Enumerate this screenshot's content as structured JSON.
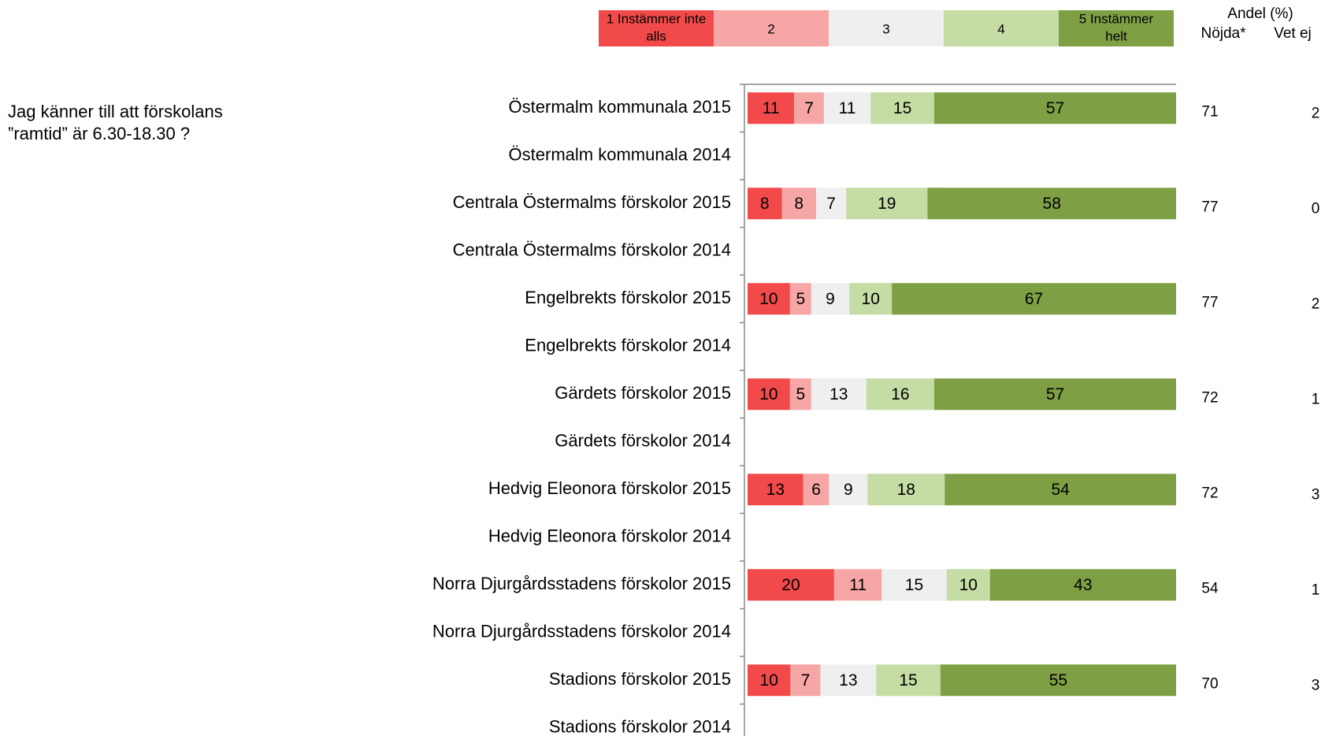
{
  "question": {
    "line1": "Jag känner till att förskolans",
    "line2": "”ramtid” är 6.30-18.30 ?"
  },
  "chart_data": {
    "type": "bar",
    "orientation": "horizontal",
    "stacked": true,
    "xlim": [
      0,
      100
    ],
    "grid": false,
    "legend_position": "top",
    "header": {
      "andel": "Andel (%)",
      "nojda": "Nöjda*",
      "vetej": "Vet ej"
    },
    "legend": [
      {
        "label": "1 Instämmer inte alls",
        "lines": [
          "1 Instämmer inte",
          "alls"
        ],
        "color": "#f24a4a"
      },
      {
        "label": "2",
        "lines": [
          "2"
        ],
        "color": "#f7a6a6"
      },
      {
        "label": "3",
        "lines": [
          "3"
        ],
        "color": "#efefef"
      },
      {
        "label": "4",
        "lines": [
          "4"
        ],
        "color": "#c6dca5"
      },
      {
        "label": "5 Instämmer helt",
        "lines": [
          "5 Instämmer",
          "helt"
        ],
        "color": "#7f9f44"
      }
    ],
    "categories": [
      {
        "label": "Östermalm kommunala 2015",
        "values": [
          11,
          7,
          11,
          15,
          57
        ],
        "nojda": "71",
        "vetej": "2"
      },
      {
        "label": "Östermalm kommunala 2014",
        "values": null,
        "nojda": "",
        "vetej": ""
      },
      {
        "label": "Centrala Östermalms förskolor 2015",
        "values": [
          8,
          8,
          7,
          19,
          58
        ],
        "nojda": "77",
        "vetej": "0"
      },
      {
        "label": "Centrala Östermalms förskolor 2014",
        "values": null,
        "nojda": "",
        "vetej": ""
      },
      {
        "label": "Engelbrekts förskolor 2015",
        "values": [
          10,
          5,
          9,
          10,
          67
        ],
        "nojda": "77",
        "vetej": "2"
      },
      {
        "label": "Engelbrekts förskolor 2014",
        "values": null,
        "nojda": "",
        "vetej": ""
      },
      {
        "label": "Gärdets förskolor 2015",
        "values": [
          10,
          5,
          13,
          16,
          57
        ],
        "nojda": "72",
        "vetej": "1"
      },
      {
        "label": "Gärdets förskolor 2014",
        "values": null,
        "nojda": "",
        "vetej": ""
      },
      {
        "label": "Hedvig Eleonora förskolor 2015",
        "values": [
          13,
          6,
          9,
          18,
          54
        ],
        "nojda": "72",
        "vetej": "3"
      },
      {
        "label": "Hedvig Eleonora förskolor 2014",
        "values": null,
        "nojda": "",
        "vetej": ""
      },
      {
        "label": "Norra Djurgårdsstadens förskolor 2015",
        "values": [
          20,
          11,
          15,
          10,
          43
        ],
        "nojda": "54",
        "vetej": "1"
      },
      {
        "label": "Norra Djurgårdsstadens förskolor 2014",
        "values": null,
        "nojda": "",
        "vetej": ""
      },
      {
        "label": "Stadions förskolor 2015",
        "values": [
          10,
          7,
          13,
          15,
          55
        ],
        "nojda": "70",
        "vetej": "3"
      },
      {
        "label": "Stadions förskolor 2014",
        "values": null,
        "nojda": "",
        "vetej": ""
      }
    ]
  }
}
